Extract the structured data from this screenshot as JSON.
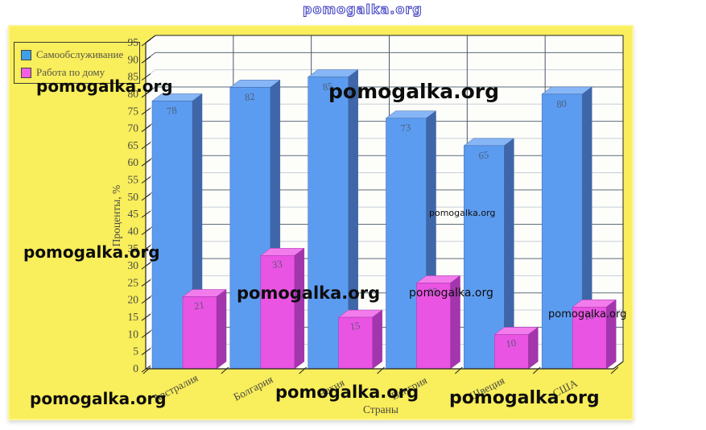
{
  "watermark": {
    "text": "pomogalka.org",
    "outline_color": "#3a3ac0"
  },
  "panel": {
    "background": "#f9ee5b"
  },
  "legend": {
    "items": [
      {
        "label": "Самообслуживание",
        "color": "#3fa0e8"
      },
      {
        "label": "Работа по дому",
        "color": "#f35fe3"
      }
    ]
  },
  "chart_data": {
    "type": "bar",
    "projection": "3d",
    "title": "",
    "categories": [
      "Австралия",
      "Болгария",
      "Чехия",
      "Венгрия",
      "Швеция",
      "США"
    ],
    "series": [
      {
        "name": "Самообслуживание",
        "values": [
          78,
          82,
          85,
          73,
          65,
          80
        ],
        "color_front": "#5c9cf0",
        "color_top": "#87b6f6",
        "color_side": "#3e66a8"
      },
      {
        "name": "Работа по дому",
        "values": [
          21,
          33,
          15,
          25,
          10,
          18
        ],
        "color_front": "#ea54e2",
        "color_top": "#f37cec",
        "color_side": "#a335ad"
      }
    ],
    "xlabel": "Страны",
    "ylabel": "Проценты, %",
    "ylim": [
      0,
      95
    ],
    "ytick_step": 5,
    "grid": true,
    "gridline_major_color": "#5d6d7a",
    "gridline_minor_color": "#c6cfd8",
    "legend_position": "top-left",
    "bar_value_labels": true
  }
}
